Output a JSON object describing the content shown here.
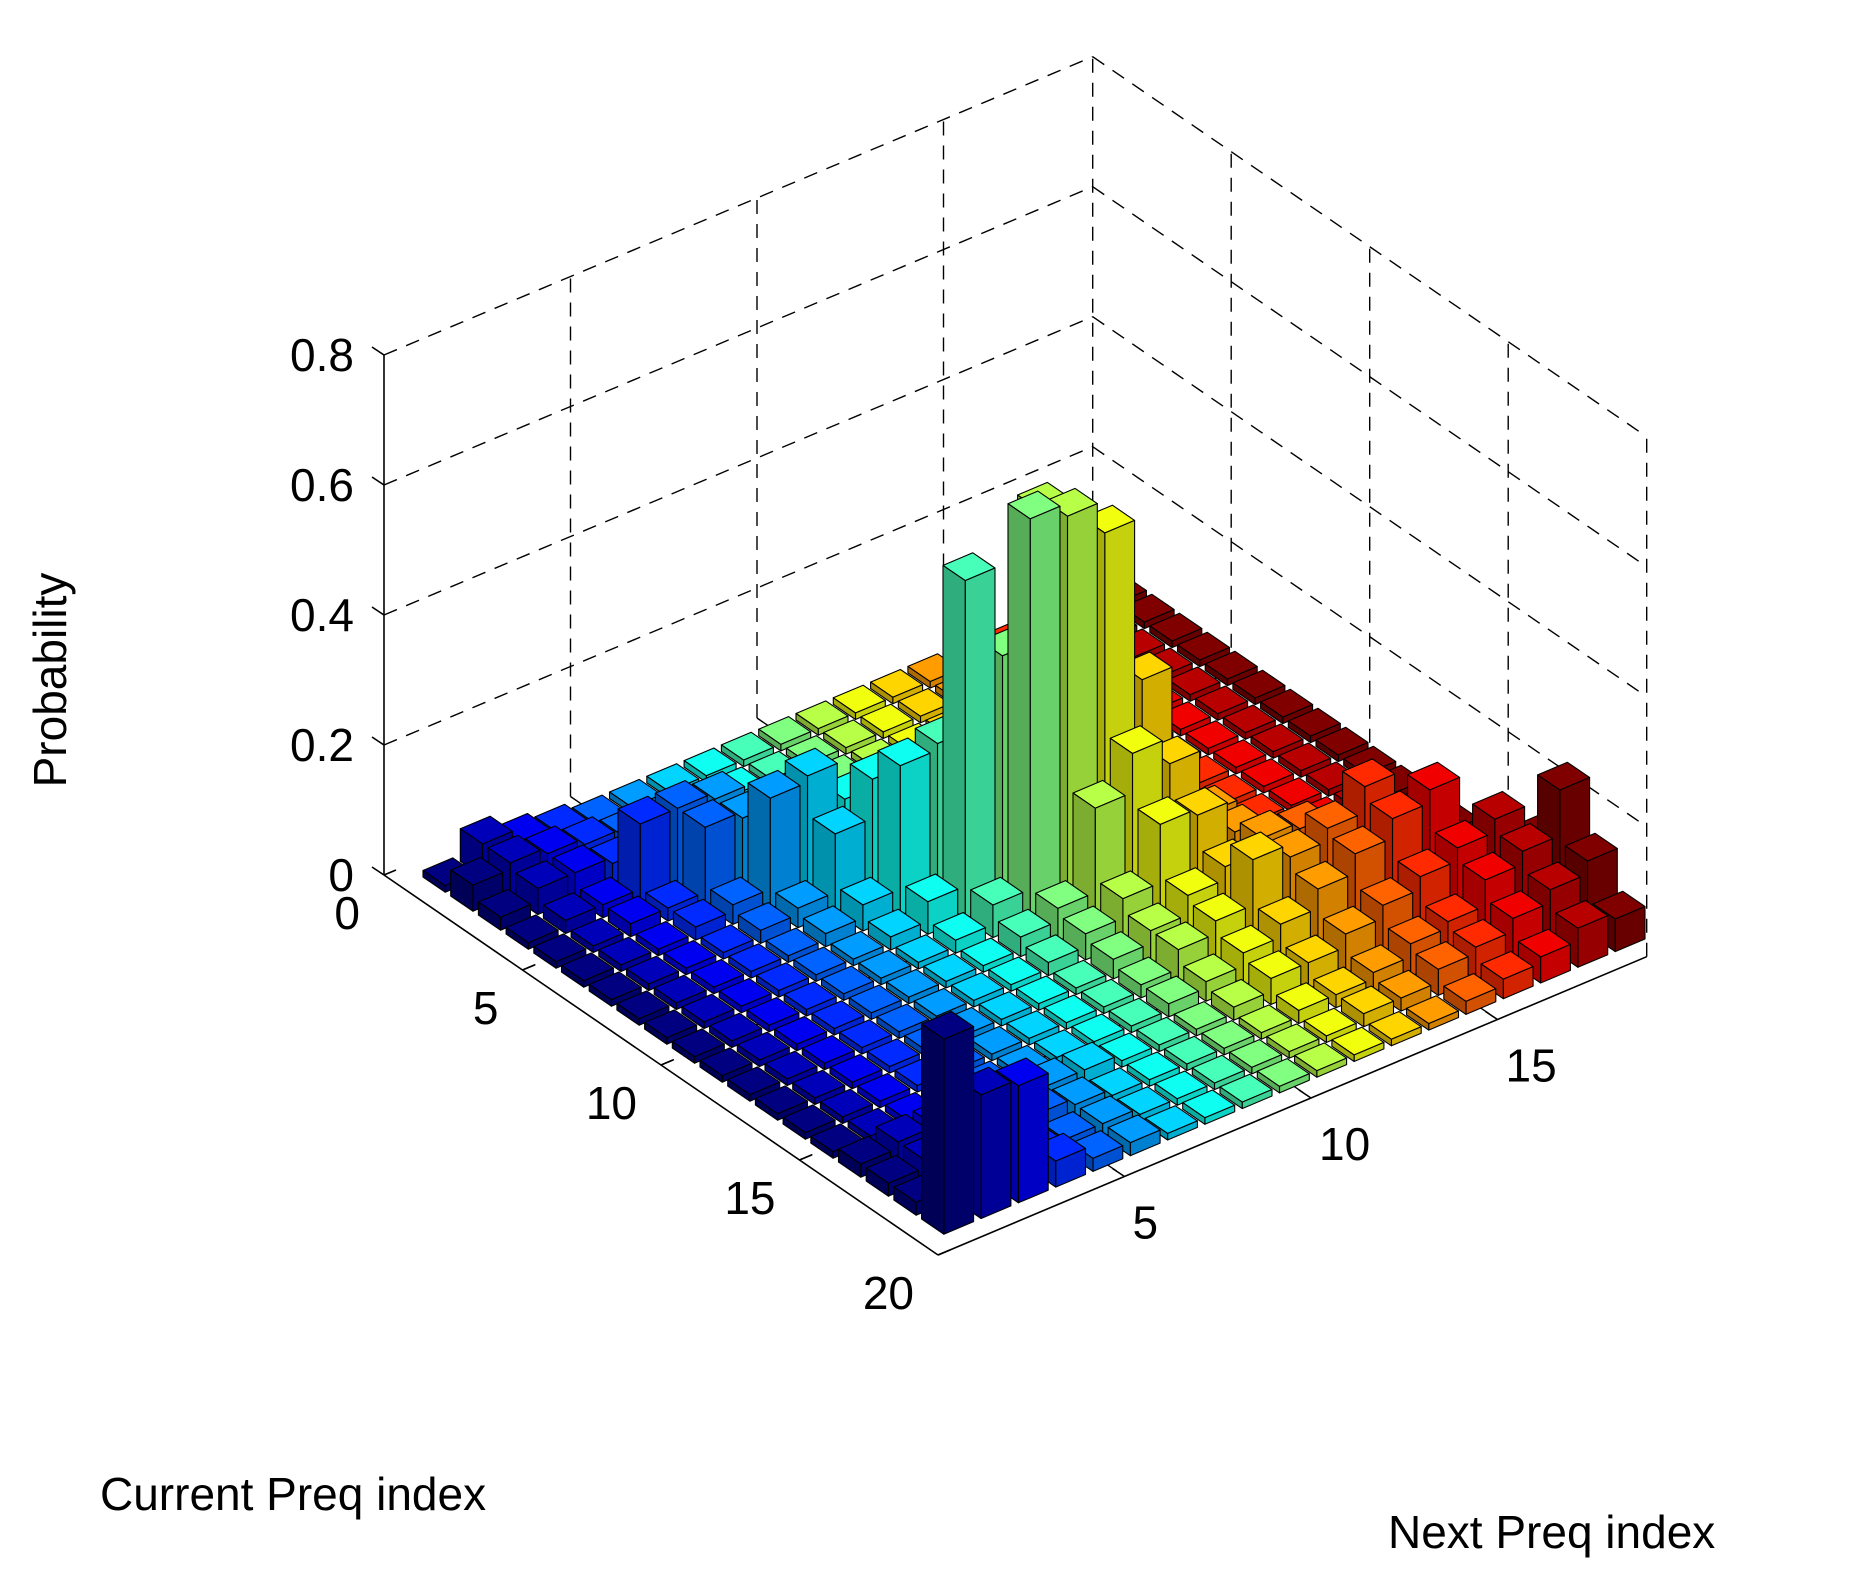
{
  "chart_data": {
    "type": "bar3d",
    "title": "",
    "xlabel": "Current Preq index",
    "ylabel": "Next Preq index",
    "zlabel": "Probability",
    "x_ticks": [
      "0",
      "5",
      "10",
      "15",
      "20"
    ],
    "y_ticks": [
      "5",
      "10",
      "15"
    ],
    "z_ticks": [
      "0",
      "0.2",
      "0.4",
      "0.6",
      "0.8"
    ],
    "x_range": [
      0,
      20
    ],
    "y_range": [
      0,
      19
    ],
    "z_range": [
      0,
      0.8
    ],
    "grid": true,
    "colormap": "jet",
    "colored_by": "next_preq_index",
    "rows": 19,
    "cols": 19,
    "matrix": [
      [
        0.01,
        0.05,
        0.03,
        0.02,
        0.01,
        0.01,
        0.01,
        0.01,
        0.01,
        0.01,
        0.01,
        0.01,
        0.01,
        0.01,
        0.01,
        0.01,
        0.01,
        0.01,
        0.01
      ],
      [
        0.04,
        0.05,
        0.04,
        0.03,
        0.02,
        0.01,
        0.01,
        0.01,
        0.01,
        0.01,
        0.01,
        0.01,
        0.01,
        0.01,
        0.01,
        0.01,
        0.01,
        0.01,
        0.01
      ],
      [
        0.02,
        0.04,
        0.04,
        0.03,
        0.02,
        0.01,
        0.01,
        0.01,
        0.01,
        0.01,
        0.01,
        0.01,
        0.01,
        0.01,
        0.01,
        0.01,
        0.01,
        0.01,
        0.01
      ],
      [
        0.01,
        0.02,
        0.02,
        0.12,
        0.12,
        0.11,
        0.02,
        0.01,
        0.01,
        0.01,
        0.01,
        0.01,
        0.01,
        0.01,
        0.01,
        0.01,
        0.01,
        0.01,
        0.01
      ],
      [
        0.01,
        0.01,
        0.02,
        0.02,
        0.12,
        0.11,
        0.11,
        0.03,
        0.01,
        0.01,
        0.01,
        0.01,
        0.01,
        0.01,
        0.01,
        0.01,
        0.01,
        0.01,
        0.01
      ],
      [
        0.01,
        0.01,
        0.01,
        0.02,
        0.03,
        0.17,
        0.18,
        0.12,
        0.03,
        0.01,
        0.01,
        0.01,
        0.01,
        0.01,
        0.01,
        0.01,
        0.01,
        0.01,
        0.01
      ],
      [
        0.01,
        0.01,
        0.01,
        0.01,
        0.02,
        0.03,
        0.12,
        0.18,
        0.17,
        0.04,
        0.01,
        0.01,
        0.01,
        0.01,
        0.01,
        0.01,
        0.01,
        0.01,
        0.01
      ],
      [
        0.01,
        0.01,
        0.01,
        0.01,
        0.01,
        0.02,
        0.04,
        0.23,
        0.24,
        0.22,
        0.05,
        0.02,
        0.01,
        0.01,
        0.01,
        0.01,
        0.01,
        0.01,
        0.01
      ],
      [
        0.01,
        0.01,
        0.01,
        0.01,
        0.01,
        0.01,
        0.02,
        0.05,
        0.52,
        0.38,
        0.58,
        0.26,
        0.04,
        0.02,
        0.01,
        0.01,
        0.01,
        0.01,
        0.01
      ],
      [
        0.01,
        0.01,
        0.01,
        0.01,
        0.01,
        0.01,
        0.01,
        0.02,
        0.05,
        0.62,
        0.6,
        0.55,
        0.3,
        0.03,
        0.01,
        0.01,
        0.01,
        0.01,
        0.01
      ],
      [
        0.01,
        0.01,
        0.01,
        0.01,
        0.01,
        0.01,
        0.01,
        0.01,
        0.03,
        0.05,
        0.18,
        0.24,
        0.2,
        0.1,
        0.03,
        0.01,
        0.01,
        0.01,
        0.01
      ],
      [
        0.01,
        0.01,
        0.01,
        0.01,
        0.01,
        0.01,
        0.01,
        0.01,
        0.02,
        0.04,
        0.07,
        0.16,
        0.15,
        0.1,
        0.03,
        0.02,
        0.01,
        0.01,
        0.01
      ],
      [
        0.01,
        0.01,
        0.01,
        0.01,
        0.01,
        0.01,
        0.01,
        0.01,
        0.01,
        0.03,
        0.05,
        0.08,
        0.1,
        0.12,
        0.11,
        0.05,
        0.02,
        0.01,
        0.01
      ],
      [
        0.01,
        0.01,
        0.01,
        0.01,
        0.01,
        0.01,
        0.01,
        0.01,
        0.01,
        0.02,
        0.05,
        0.07,
        0.14,
        0.12,
        0.14,
        0.18,
        0.06,
        0.02,
        0.01
      ],
      [
        0.01,
        0.01,
        0.01,
        0.01,
        0.01,
        0.01,
        0.01,
        0.01,
        0.01,
        0.02,
        0.03,
        0.05,
        0.07,
        0.1,
        0.13,
        0.16,
        0.18,
        0.04,
        0.01
      ],
      [
        0.02,
        0.03,
        0.03,
        0.03,
        0.03,
        0.02,
        0.02,
        0.01,
        0.01,
        0.01,
        0.02,
        0.04,
        0.04,
        0.06,
        0.08,
        0.1,
        0.12,
        0.14,
        0.08
      ],
      [
        0.02,
        0.03,
        0.04,
        0.04,
        0.03,
        0.02,
        0.01,
        0.01,
        0.01,
        0.01,
        0.01,
        0.02,
        0.02,
        0.03,
        0.05,
        0.06,
        0.1,
        0.12,
        0.19
      ],
      [
        0.02,
        0.03,
        0.03,
        0.03,
        0.02,
        0.02,
        0.01,
        0.01,
        0.01,
        0.01,
        0.01,
        0.01,
        0.02,
        0.02,
        0.04,
        0.05,
        0.07,
        0.09,
        0.11
      ],
      [
        0.3,
        0.19,
        0.18,
        0.04,
        0.02,
        0.02,
        0.01,
        0.01,
        0.01,
        0.01,
        0.01,
        0.01,
        0.01,
        0.01,
        0.02,
        0.03,
        0.04,
        0.06,
        0.05
      ]
    ]
  }
}
